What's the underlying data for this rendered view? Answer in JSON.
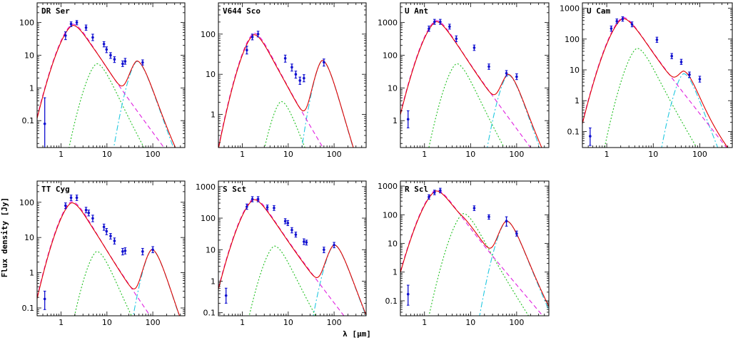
{
  "figure": {
    "xlabel": "λ [μm]",
    "ylabel": "Flux density [Jy]"
  },
  "colors": {
    "total_model": "#e00000",
    "stellar_component": "#e020e0",
    "hot_dust": "#20c020",
    "cold_shell": "#20c8e0",
    "observations": "#1010d0"
  },
  "chart_data": [
    {
      "type": "line",
      "title": "DR Ser",
      "xscale": "log",
      "yscale": "log",
      "xlim": [
        0.3,
        500
      ],
      "ylim": [
        0.015,
        400
      ],
      "xticks": [
        1,
        10,
        100
      ],
      "yticks": [
        0.1,
        1,
        10,
        100
      ],
      "model": {
        "peak_wl": 2.0,
        "stellar_peak": 85,
        "hot_peak": 5.5,
        "hot_wl": 6,
        "cold_peak": 6.5,
        "cold_wl": 45
      },
      "points": [
        {
          "x": 0.44,
          "y": 0.08,
          "err": [
            0.01,
            0.5
          ]
        },
        {
          "x": 1.25,
          "y": 40,
          "err": [
            30,
            52
          ]
        },
        {
          "x": 1.65,
          "y": 90,
          "err": [
            75,
            105
          ]
        },
        {
          "x": 2.2,
          "y": 100,
          "err": [
            85,
            115
          ]
        },
        {
          "x": 3.5,
          "y": 70,
          "err": [
            58,
            84
          ]
        },
        {
          "x": 4.9,
          "y": 35,
          "err": [
            28,
            44
          ]
        },
        {
          "x": 8.6,
          "y": 22,
          "err": [
            18,
            26
          ]
        },
        {
          "x": 9.8,
          "y": 15,
          "err": [
            12,
            18
          ]
        },
        {
          "x": 12,
          "y": 10,
          "err": [
            8,
            12
          ]
        },
        {
          "x": 14.6,
          "y": 7.5,
          "err": [
            6,
            9
          ]
        },
        {
          "x": 22,
          "y": 5.5,
          "err": [
            4.5,
            6.7
          ]
        },
        {
          "x": 25,
          "y": 6.5,
          "err": [
            5.3,
            8
          ]
        },
        {
          "x": 60,
          "y": 6.0,
          "err": [
            5,
            7.2
          ]
        }
      ]
    },
    {
      "type": "line",
      "title": "V644 Sco",
      "xscale": "log",
      "yscale": "log",
      "xlim": [
        0.3,
        500
      ],
      "ylim": [
        0.15,
        600
      ],
      "xticks": [
        1,
        10,
        100
      ],
      "yticks": [
        1,
        10,
        100
      ],
      "model": {
        "peak_wl": 2.0,
        "stellar_peak": 100,
        "hot_peak": 2.1,
        "hot_wl": 7,
        "cold_peak": 22,
        "cold_wl": 55
      },
      "points": [
        {
          "x": 1.25,
          "y": 40,
          "err": [
            32,
            50
          ]
        },
        {
          "x": 1.65,
          "y": 85,
          "err": [
            72,
            100
          ]
        },
        {
          "x": 2.2,
          "y": 100,
          "err": [
            85,
            118
          ]
        },
        {
          "x": 8.6,
          "y": 25,
          "err": [
            20,
            30
          ]
        },
        {
          "x": 12,
          "y": 15,
          "err": [
            12,
            18
          ]
        },
        {
          "x": 14.6,
          "y": 10,
          "err": [
            8,
            12
          ]
        },
        {
          "x": 18,
          "y": 7,
          "err": [
            5.6,
            8.5
          ]
        },
        {
          "x": 22,
          "y": 8,
          "err": [
            6.5,
            9.8
          ]
        },
        {
          "x": 60,
          "y": 20,
          "err": [
            16,
            24
          ]
        }
      ]
    },
    {
      "type": "line",
      "title": "U Ant",
      "xscale": "log",
      "yscale": "log",
      "xlim": [
        0.3,
        500
      ],
      "ylim": [
        0.15,
        4000
      ],
      "xticks": [
        1,
        10,
        100
      ],
      "yticks": [
        1,
        10,
        100,
        1000
      ],
      "model": {
        "peak_wl": 2.0,
        "stellar_peak": 1100,
        "hot_peak": 55,
        "hot_wl": 5,
        "cold_peak": 25,
        "cold_wl": 65
      },
      "points": [
        {
          "x": 0.44,
          "y": 1.1,
          "err": [
            0.6,
            2
          ]
        },
        {
          "x": 1.25,
          "y": 650,
          "err": [
            540,
            780
          ]
        },
        {
          "x": 1.65,
          "y": 1050,
          "err": [
            880,
            1250
          ]
        },
        {
          "x": 2.2,
          "y": 1050,
          "err": [
            880,
            1250
          ]
        },
        {
          "x": 3.5,
          "y": 750,
          "err": [
            630,
            890
          ]
        },
        {
          "x": 4.9,
          "y": 320,
          "err": [
            260,
            390
          ]
        },
        {
          "x": 12,
          "y": 170,
          "err": [
            140,
            205
          ]
        },
        {
          "x": 25,
          "y": 45,
          "err": [
            37,
            54
          ]
        },
        {
          "x": 60,
          "y": 28,
          "err": [
            23,
            34
          ]
        },
        {
          "x": 100,
          "y": 22,
          "err": [
            18,
            27
          ]
        }
      ]
    },
    {
      "type": "line",
      "title": "U Cam",
      "xscale": "log",
      "yscale": "log",
      "xlim": [
        0.3,
        500
      ],
      "ylim": [
        0.03,
        1500
      ],
      "xticks": [
        1,
        10,
        100
      ],
      "yticks": [
        0.1,
        1,
        10,
        100,
        1000
      ],
      "model": {
        "peak_wl": 2.5,
        "stellar_peak": 480,
        "hot_peak": 50,
        "hot_wl": 4.5,
        "cold_peak": 7.5,
        "cold_wl": 45
      },
      "points": [
        {
          "x": 0.44,
          "y": 0.07,
          "err": [
            0.035,
            0.13
          ]
        },
        {
          "x": 1.25,
          "y": 220,
          "err": [
            180,
            265
          ]
        },
        {
          "x": 1.65,
          "y": 380,
          "err": [
            320,
            450
          ]
        },
        {
          "x": 2.2,
          "y": 450,
          "err": [
            380,
            530
          ]
        },
        {
          "x": 3.5,
          "y": 300,
          "err": [
            250,
            360
          ]
        },
        {
          "x": 12,
          "y": 95,
          "err": [
            78,
            115
          ]
        },
        {
          "x": 25,
          "y": 28,
          "err": [
            23,
            34
          ]
        },
        {
          "x": 40,
          "y": 18,
          "err": [
            15,
            22
          ]
        },
        {
          "x": 60,
          "y": 7,
          "err": [
            5.7,
            8.5
          ]
        },
        {
          "x": 100,
          "y": 5,
          "err": [
            4,
            6.2
          ]
        }
      ]
    },
    {
      "type": "line",
      "title": "TT Cyg",
      "xscale": "log",
      "yscale": "log",
      "xlim": [
        0.3,
        500
      ],
      "ylim": [
        0.06,
        400
      ],
      "xticks": [
        1,
        10,
        100
      ],
      "yticks": [
        0.1,
        1,
        10,
        100
      ],
      "model": {
        "peak_wl": 1.9,
        "stellar_peak": 100,
        "hot_peak": 4.0,
        "hot_wl": 6,
        "cold_peak": 4.5,
        "cold_wl": 95
      },
      "points": [
        {
          "x": 0.44,
          "y": 0.18,
          "err": [
            0.09,
            0.3
          ]
        },
        {
          "x": 1.25,
          "y": 80,
          "err": [
            66,
            96
          ]
        },
        {
          "x": 1.65,
          "y": 135,
          "err": [
            112,
            160
          ]
        },
        {
          "x": 2.2,
          "y": 135,
          "err": [
            112,
            160
          ]
        },
        {
          "x": 3.5,
          "y": 60,
          "err": [
            50,
            72
          ]
        },
        {
          "x": 4.0,
          "y": 50,
          "err": [
            41,
            60
          ]
        },
        {
          "x": 4.9,
          "y": 35,
          "err": [
            28,
            43
          ]
        },
        {
          "x": 8.6,
          "y": 20,
          "err": [
            16,
            24
          ]
        },
        {
          "x": 9.8,
          "y": 15,
          "err": [
            12,
            18
          ]
        },
        {
          "x": 12,
          "y": 11,
          "err": [
            9,
            13
          ]
        },
        {
          "x": 14.6,
          "y": 8,
          "err": [
            6.5,
            9.7
          ]
        },
        {
          "x": 22,
          "y": 4,
          "err": [
            3.2,
            4.9
          ]
        },
        {
          "x": 25,
          "y": 4.2,
          "err": [
            3.4,
            5.1
          ]
        },
        {
          "x": 60,
          "y": 4,
          "err": [
            3.2,
            4.9
          ]
        },
        {
          "x": 100,
          "y": 4.5,
          "err": [
            3.7,
            5.5
          ]
        }
      ]
    },
    {
      "type": "line",
      "title": "S Sct",
      "xscale": "log",
      "yscale": "log",
      "xlim": [
        0.3,
        500
      ],
      "ylim": [
        0.08,
        1500
      ],
      "xticks": [
        1,
        10,
        100
      ],
      "yticks": [
        0.1,
        1,
        10,
        100,
        1000
      ],
      "model": {
        "peak_wl": 2.0,
        "stellar_peak": 400,
        "hot_peak": 13,
        "hot_wl": 5,
        "cold_peak": 14,
        "cold_wl": 100
      },
      "points": [
        {
          "x": 0.44,
          "y": 0.35,
          "err": [
            0.2,
            0.6
          ]
        },
        {
          "x": 1.25,
          "y": 230,
          "err": [
            190,
            280
          ]
        },
        {
          "x": 1.65,
          "y": 400,
          "err": [
            330,
            480
          ]
        },
        {
          "x": 2.2,
          "y": 400,
          "err": [
            330,
            480
          ]
        },
        {
          "x": 3.5,
          "y": 220,
          "err": [
            185,
            260
          ]
        },
        {
          "x": 4.9,
          "y": 210,
          "err": [
            175,
            250
          ]
        },
        {
          "x": 8.6,
          "y": 80,
          "err": [
            66,
            96
          ]
        },
        {
          "x": 9.8,
          "y": 70,
          "err": [
            58,
            84
          ]
        },
        {
          "x": 12,
          "y": 42,
          "err": [
            34,
            50
          ]
        },
        {
          "x": 14.6,
          "y": 30,
          "err": [
            25,
            36
          ]
        },
        {
          "x": 22,
          "y": 18,
          "err": [
            14.5,
            22
          ]
        },
        {
          "x": 25,
          "y": 17,
          "err": [
            14,
            20
          ]
        },
        {
          "x": 60,
          "y": 10,
          "err": [
            8,
            12
          ]
        },
        {
          "x": 100,
          "y": 14,
          "err": [
            11.5,
            17
          ]
        }
      ]
    },
    {
      "type": "line",
      "title": "R Scl",
      "xscale": "log",
      "yscale": "log",
      "xlim": [
        0.3,
        500
      ],
      "ylim": [
        0.03,
        1500
      ],
      "xticks": [
        1,
        10,
        100
      ],
      "yticks": [
        0.1,
        1,
        10,
        100,
        1000
      ],
      "model": {
        "peak_wl": 2.0,
        "stellar_peak": 700,
        "hot_peak": 110,
        "hot_wl": 7,
        "cold_peak": 60,
        "cold_wl": 60
      },
      "points": [
        {
          "x": 0.44,
          "y": 0.17,
          "err": [
            0.07,
            0.35
          ]
        },
        {
          "x": 1.25,
          "y": 420,
          "err": [
            350,
            500
          ]
        },
        {
          "x": 1.65,
          "y": 600,
          "err": [
            500,
            720
          ]
        },
        {
          "x": 2.2,
          "y": 700,
          "err": [
            580,
            840
          ]
        },
        {
          "x": 12,
          "y": 170,
          "err": [
            140,
            205
          ]
        },
        {
          "x": 25,
          "y": 85,
          "err": [
            70,
            100
          ]
        },
        {
          "x": 60,
          "y": 60,
          "err": [
            40,
            85
          ]
        },
        {
          "x": 100,
          "y": 22,
          "err": [
            18,
            27
          ]
        }
      ]
    }
  ]
}
